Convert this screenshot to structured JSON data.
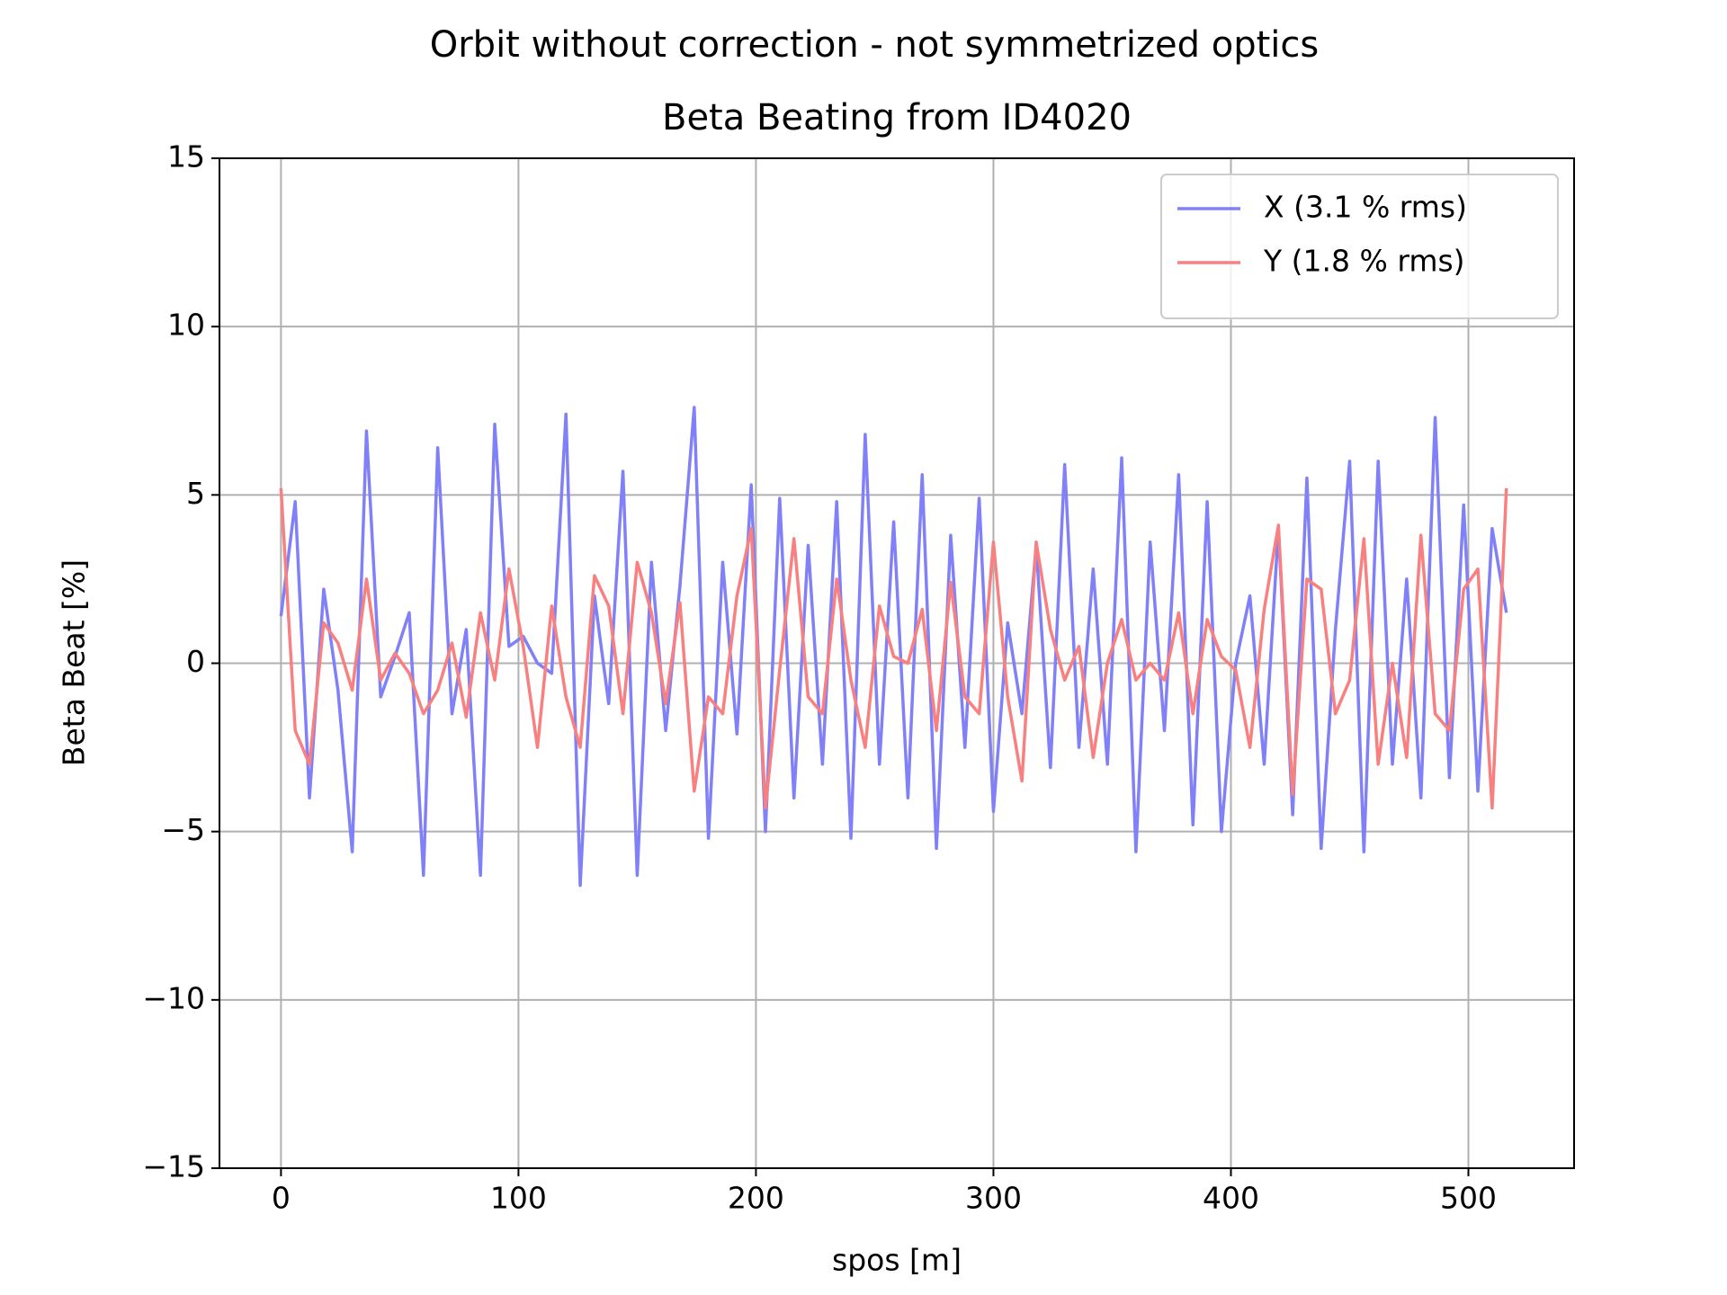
{
  "chart_data": {
    "type": "line",
    "suptitle": "Orbit without correction - not symmetrized optics",
    "title": "Beta Beating from ID4020",
    "x_label": "spos [m]",
    "y_label": "Beta Beat [%]",
    "x": [
      0,
      6,
      12,
      18,
      24,
      30,
      36,
      42,
      48,
      54,
      60,
      66,
      72,
      78,
      84,
      90,
      96,
      102,
      108,
      114,
      120,
      126,
      132,
      138,
      144,
      150,
      156,
      162,
      168,
      174,
      180,
      186,
      192,
      198,
      204,
      210,
      216,
      222,
      228,
      234,
      240,
      246,
      252,
      258,
      264,
      270,
      276,
      282,
      288,
      294,
      300,
      306,
      312,
      318,
      324,
      330,
      336,
      342,
      348,
      354,
      360,
      366,
      372,
      378,
      384,
      390,
      396,
      402,
      408,
      414,
      420,
      426,
      432,
      438,
      444,
      450,
      456,
      462,
      468,
      474,
      480,
      486,
      492,
      498,
      504,
      510,
      516
    ],
    "series": [
      {
        "name": "X (3.1 % rms)",
        "color": "#8080f8",
        "values": [
          1.4,
          4.8,
          -4.0,
          2.2,
          -0.8,
          -5.6,
          6.9,
          -1.0,
          0.2,
          1.5,
          -6.3,
          6.4,
          -1.5,
          1.0,
          -6.3,
          7.1,
          0.5,
          0.8,
          0.0,
          -0.3,
          7.4,
          -6.6,
          2.0,
          -1.2,
          5.7,
          -6.3,
          3.0,
          -2.0,
          2.3,
          7.6,
          -5.2,
          3.0,
          -2.1,
          5.3,
          -5.0,
          4.9,
          -4.0,
          3.5,
          -3.0,
          4.8,
          -5.2,
          6.8,
          -3.0,
          4.2,
          -4.0,
          5.6,
          -5.5,
          3.8,
          -2.5,
          4.9,
          -4.4,
          1.2,
          -1.5,
          3.5,
          -3.1,
          5.9,
          -2.5,
          2.8,
          -3.0,
          6.1,
          -5.6,
          3.6,
          -2.0,
          5.6,
          -4.8,
          4.8,
          -5.0,
          0.0,
          2.0,
          -3.0,
          4.0,
          -4.5,
          5.5,
          -5.5,
          1.0,
          6.0,
          -5.6,
          6.0,
          -3.0,
          2.5,
          -4.0,
          7.3,
          -3.4,
          4.7,
          -3.8,
          4.0,
          1.5
        ]
      },
      {
        "name": "Y (1.8 % rms)",
        "color": "#f88080",
        "values": [
          5.2,
          -2.0,
          -3.0,
          1.2,
          0.6,
          -0.8,
          2.5,
          -0.5,
          0.3,
          -0.3,
          -1.5,
          -0.8,
          0.6,
          -1.6,
          1.5,
          -0.5,
          2.8,
          0.5,
          -2.5,
          1.7,
          -1.0,
          -2.5,
          2.6,
          1.7,
          -1.5,
          3.0,
          1.5,
          -1.2,
          1.8,
          -3.8,
          -1.0,
          -1.5,
          2.0,
          4.0,
          -4.3,
          -0.2,
          3.7,
          -1.0,
          -1.5,
          2.5,
          -0.5,
          -2.5,
          1.7,
          0.2,
          0.0,
          1.6,
          -2.0,
          2.4,
          -1.0,
          -1.5,
          3.6,
          -1.0,
          -3.5,
          3.6,
          1.0,
          -0.5,
          0.5,
          -2.8,
          0.0,
          1.3,
          -0.5,
          0.0,
          -0.5,
          1.5,
          -1.5,
          1.3,
          0.2,
          -0.2,
          -2.5,
          1.6,
          4.1,
          -3.9,
          2.5,
          2.2,
          -1.5,
          -0.5,
          3.7,
          -3.0,
          0.0,
          -2.8,
          3.8,
          -1.5,
          -2.0,
          2.2,
          2.8,
          -4.3,
          5.2
        ]
      }
    ],
    "xlim": [
      -25.9,
      544.5
    ],
    "ylim": [
      -15,
      15
    ],
    "xticks": [
      0,
      100,
      200,
      300,
      400,
      500
    ],
    "yticks": [
      {
        "value": -15,
        "label": "−15"
      },
      {
        "value": -10,
        "label": "−10"
      },
      {
        "value": -5,
        "label": "−5"
      },
      0,
      5,
      10,
      15
    ],
    "grid": true,
    "legend": "upper right"
  }
}
